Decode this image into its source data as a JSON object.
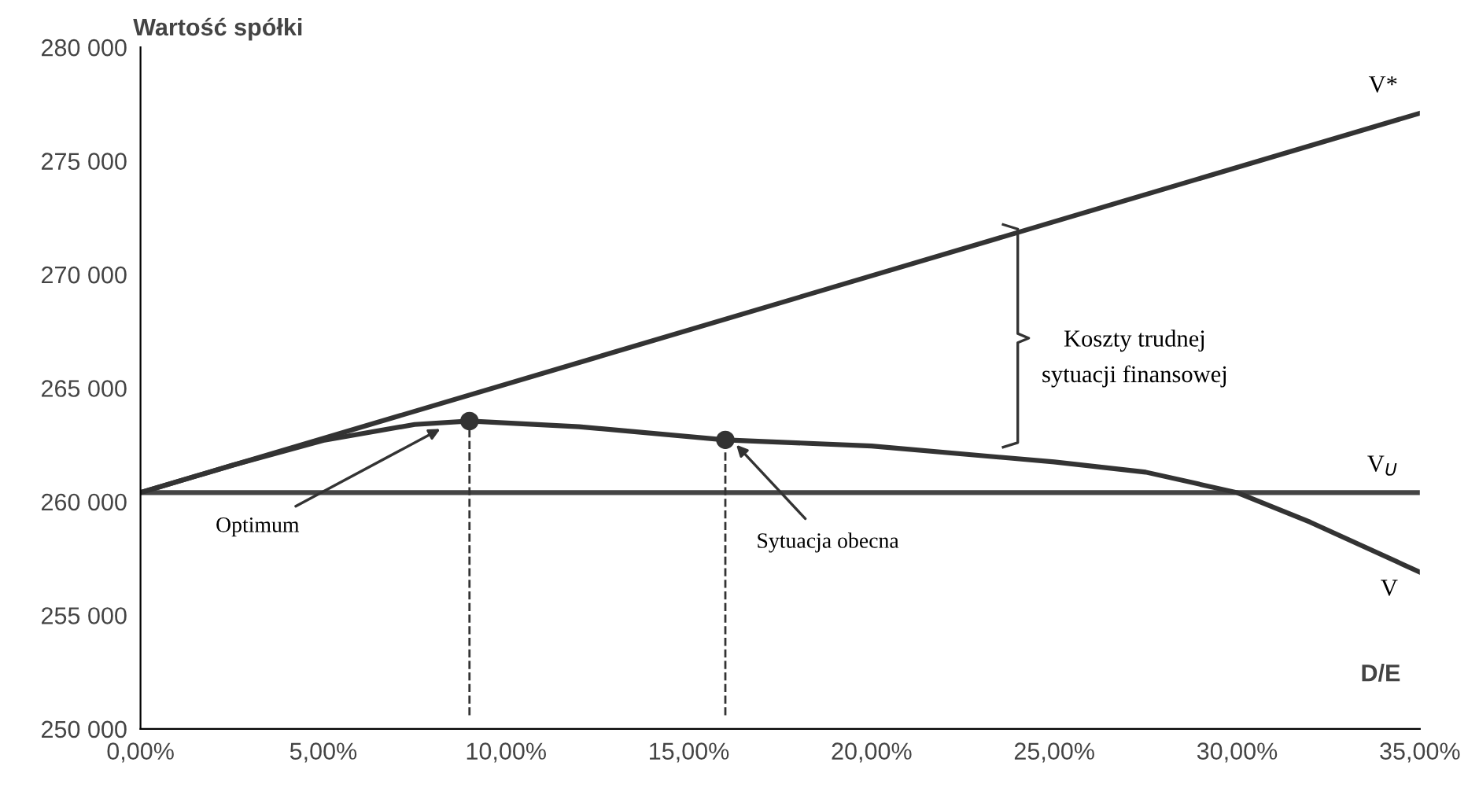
{
  "chart_data": {
    "type": "line",
    "ylabel": "Wartość spółki",
    "xlabel": "D/E",
    "xlim": [
      0,
      35
    ],
    "ylim": [
      250000,
      280000
    ],
    "xticks": [
      {
        "value": 0,
        "label": "0,00%"
      },
      {
        "value": 5,
        "label": "5,00%"
      },
      {
        "value": 10,
        "label": "10,00%"
      },
      {
        "value": 15,
        "label": "15,00%"
      },
      {
        "value": 20,
        "label": "20,00%"
      },
      {
        "value": 25,
        "label": "25,00%"
      },
      {
        "value": 30,
        "label": "30,00%"
      },
      {
        "value": 35,
        "label": "35,00%"
      }
    ],
    "yticks": [
      {
        "value": 250000,
        "label": "250 000"
      },
      {
        "value": 255000,
        "label": "255 000"
      },
      {
        "value": 260000,
        "label": "260 000"
      },
      {
        "value": 265000,
        "label": "265 000"
      },
      {
        "value": 270000,
        "label": "270 000"
      },
      {
        "value": 275000,
        "label": "275 000"
      },
      {
        "value": 280000,
        "label": "280 000"
      }
    ],
    "grid": false,
    "legend": false,
    "marker": "none",
    "line_style": "solid",
    "series": [
      {
        "name": "V*",
        "color": "#333333",
        "x": [
          0,
          35
        ],
        "values": [
          260400,
          277100
        ]
      },
      {
        "name": "V$_{U}$",
        "color": "#444444",
        "x": [
          0,
          35
        ],
        "values": [
          260400,
          260400
        ]
      },
      {
        "name": "V",
        "color": "#333333",
        "x": [
          0,
          2.5,
          5,
          7.5,
          9,
          12,
          16,
          20,
          25,
          27.5,
          30,
          32,
          35
        ],
        "values": [
          260400,
          261600,
          262700,
          263400,
          263550,
          263300,
          262720,
          262450,
          261750,
          261300,
          260400,
          259100,
          256900
        ]
      },
      {
        "type": "scatter",
        "marker": "circle",
        "color": "#333333",
        "x": [
          9,
          16
        ],
        "values": [
          263550,
          262720
        ]
      }
    ],
    "ref_lines": [
      {
        "axis": "x",
        "value": 9,
        "line_style": "dashed",
        "color": "#333333"
      },
      {
        "axis": "x",
        "value": 16,
        "line_style": "dashed",
        "color": "#333333"
      }
    ],
    "annotations": [
      {
        "text": "Optimum",
        "x": 8.2,
        "y": 263200
      },
      {
        "text": "Sytuacja obecna",
        "x": 16.3,
        "y": 262500
      },
      "Koszty trudnej\nsytuacji finansowej"
    ]
  }
}
